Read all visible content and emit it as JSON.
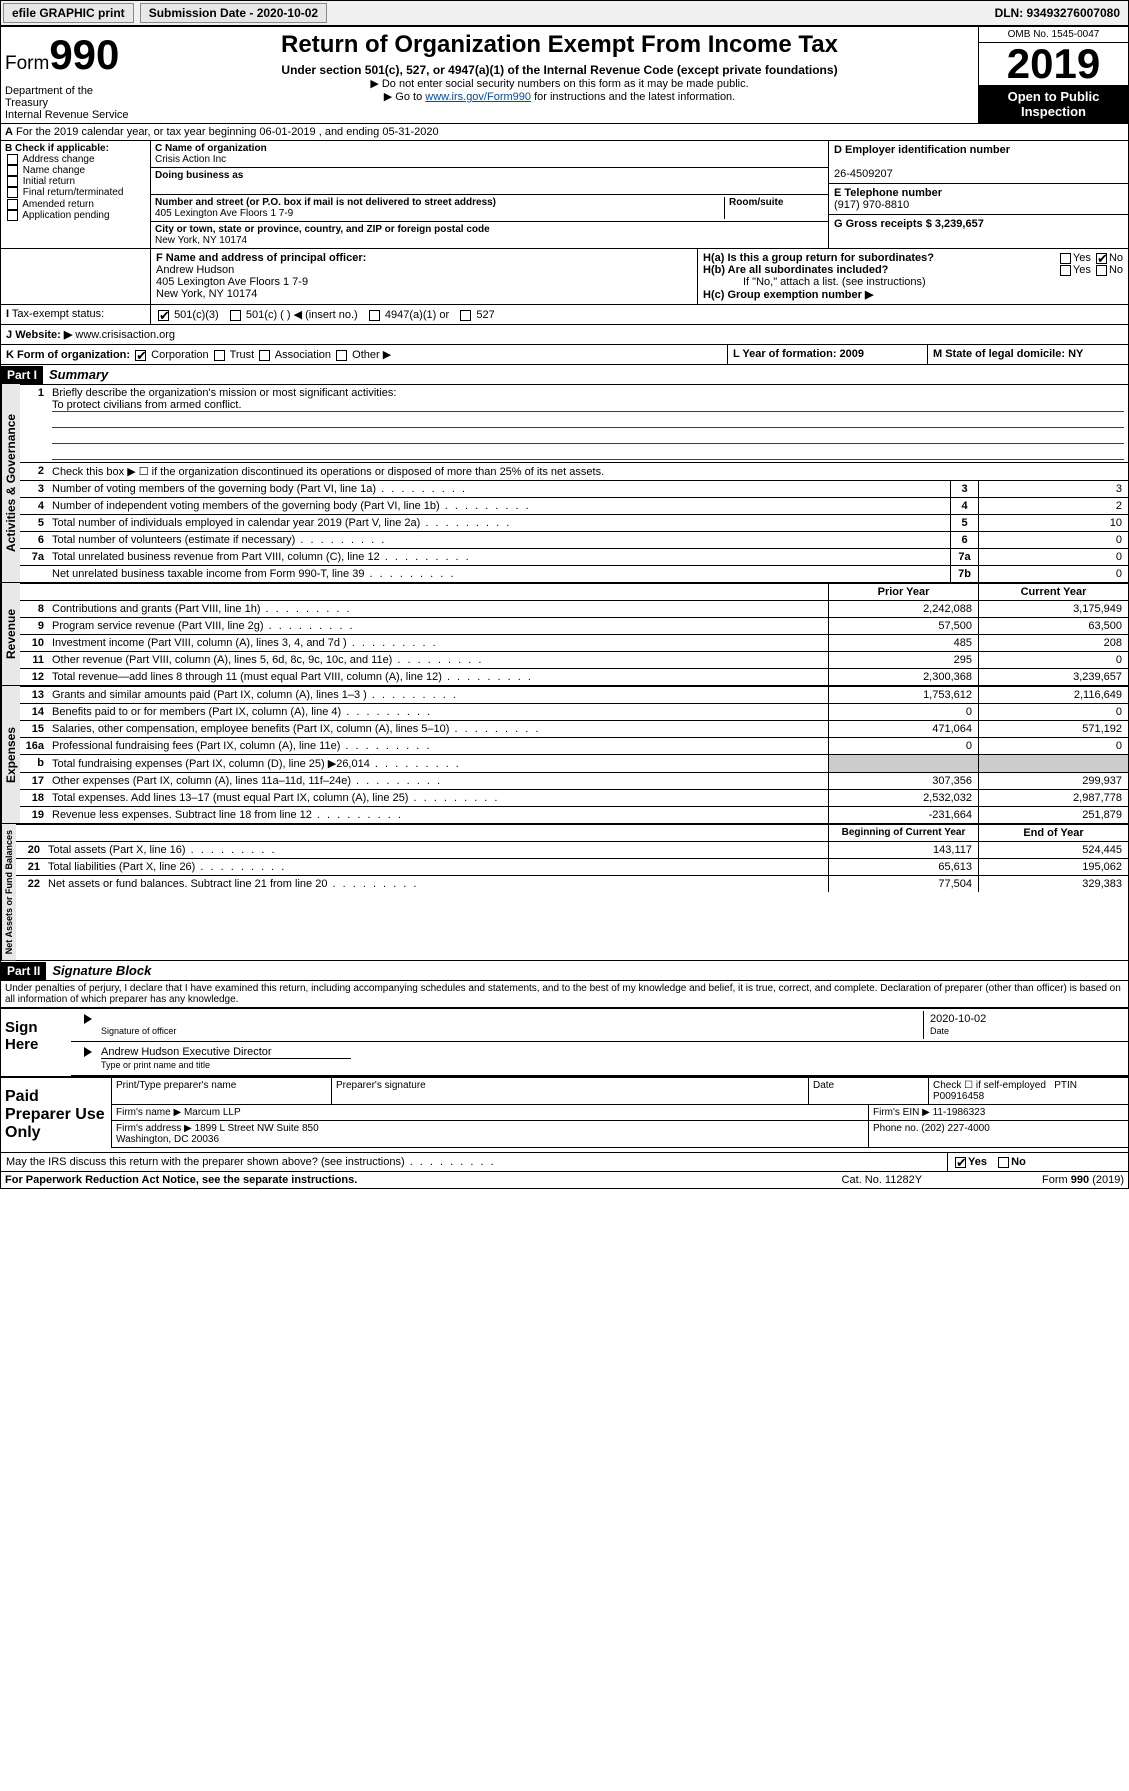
{
  "toolbar": {
    "efile": "efile GRAPHIC print",
    "submission_label": "Submission Date - 2020-10-02",
    "dln_label": "DLN: 93493276007080"
  },
  "header": {
    "form_word": "Form",
    "form_num": "990",
    "title": "Return of Organization Exempt From Income Tax",
    "subtitle": "Under section 501(c), 527, or 4947(a)(1) of the Internal Revenue Code (except private foundations)",
    "note1": "▶ Do not enter social security numbers on this form as it may be made public.",
    "note2_pre": "▶ Go to ",
    "note2_link": "www.irs.gov/Form990",
    "note2_post": " for instructions and the latest information.",
    "omb": "OMB No. 1545-0047",
    "year": "2019",
    "open": "Open to Public Inspection",
    "dept": "Department of the Treasury\nInternal Revenue Service"
  },
  "line_a": "For the 2019 calendar year, or tax year beginning 06-01-2019   , and ending 05-31-2020",
  "box_b": {
    "title": "B Check if applicable:",
    "items": [
      "Address change",
      "Name change",
      "Initial return",
      "Final return/terminated",
      "Amended return",
      "Application pending"
    ]
  },
  "box_c": {
    "name_lbl": "C Name of organization",
    "name": "Crisis Action Inc",
    "dba_lbl": "Doing business as",
    "addr_lbl": "Number and street (or P.O. box if mail is not delivered to street address)",
    "room_lbl": "Room/suite",
    "addr": "405 Lexington Ave Floors 1 7-9",
    "city_lbl": "City or town, state or province, country, and ZIP or foreign postal code",
    "city": "New York, NY  10174"
  },
  "box_d": {
    "ein_lbl": "D Employer identification number",
    "ein": "26-4509207",
    "phone_lbl": "E Telephone number",
    "phone": "(917) 970-8810",
    "gross_lbl": "G Gross receipts $ 3,239,657"
  },
  "box_f": {
    "lbl": "F Name and address of principal officer:",
    "name": "Andrew Hudson",
    "addr1": "405 Lexington Ave Floors 1 7-9",
    "addr2": "New York, NY  10174"
  },
  "box_h": {
    "a": "H(a)  Is this a group return for subordinates?",
    "b": "H(b)  Are all subordinates included?",
    "note": "If \"No,\" attach a list. (see instructions)",
    "c": "H(c)  Group exemption number ▶"
  },
  "tax_status": {
    "lbl": "Tax-exempt status:",
    "o1": "501(c)(3)",
    "o2": "501(c) (   ) ◀ (insert no.)",
    "o3": "4947(a)(1) or",
    "o4": "527"
  },
  "website": {
    "lbl": "Website: ▶",
    "val": "www.crisisaction.org"
  },
  "line_k": {
    "lbl": "K Form of organization:",
    "o1": "Corporation",
    "o2": "Trust",
    "o3": "Association",
    "o4": "Other ▶",
    "l_lbl": "L Year of formation: 2009",
    "m_lbl": "M State of legal domicile: NY"
  },
  "part1": {
    "hdr": "Part I",
    "title": "Summary",
    "q1": "Briefly describe the organization's mission or most significant activities:",
    "mission": "To protect civilians from armed conflict.",
    "q2": "Check this box ▶ ☐  if the organization discontinued its operations or disposed of more than 25% of its net assets.",
    "rows_gov": [
      {
        "n": "3",
        "t": "Number of voting members of the governing body (Part VI, line 1a)",
        "b": "3",
        "v": "3"
      },
      {
        "n": "4",
        "t": "Number of independent voting members of the governing body (Part VI, line 1b)",
        "b": "4",
        "v": "2"
      },
      {
        "n": "5",
        "t": "Total number of individuals employed in calendar year 2019 (Part V, line 2a)",
        "b": "5",
        "v": "10"
      },
      {
        "n": "6",
        "t": "Total number of volunteers (estimate if necessary)",
        "b": "6",
        "v": "0"
      },
      {
        "n": "7a",
        "t": "Total unrelated business revenue from Part VIII, column (C), line 12",
        "b": "7a",
        "v": "0"
      },
      {
        "n": "",
        "t": "Net unrelated business taxable income from Form 990-T, line 39",
        "b": "7b",
        "v": "0"
      }
    ],
    "col_hdr": {
      "prior": "Prior Year",
      "current": "Current Year"
    },
    "rows_rev": [
      {
        "n": "8",
        "t": "Contributions and grants (Part VIII, line 1h)",
        "p": "2,242,088",
        "c": "3,175,949"
      },
      {
        "n": "9",
        "t": "Program service revenue (Part VIII, line 2g)",
        "p": "57,500",
        "c": "63,500"
      },
      {
        "n": "10",
        "t": "Investment income (Part VIII, column (A), lines 3, 4, and 7d )",
        "p": "485",
        "c": "208"
      },
      {
        "n": "11",
        "t": "Other revenue (Part VIII, column (A), lines 5, 6d, 8c, 9c, 10c, and 11e)",
        "p": "295",
        "c": "0"
      },
      {
        "n": "12",
        "t": "Total revenue—add lines 8 through 11 (must equal Part VIII, column (A), line 12)",
        "p": "2,300,368",
        "c": "3,239,657"
      }
    ],
    "rows_exp": [
      {
        "n": "13",
        "t": "Grants and similar amounts paid (Part IX, column (A), lines 1–3 )",
        "p": "1,753,612",
        "c": "2,116,649"
      },
      {
        "n": "14",
        "t": "Benefits paid to or for members (Part IX, column (A), line 4)",
        "p": "0",
        "c": "0"
      },
      {
        "n": "15",
        "t": "Salaries, other compensation, employee benefits (Part IX, column (A), lines 5–10)",
        "p": "471,064",
        "c": "571,192"
      },
      {
        "n": "16a",
        "t": "Professional fundraising fees (Part IX, column (A), line 11e)",
        "p": "0",
        "c": "0"
      },
      {
        "n": "b",
        "t": "Total fundraising expenses (Part IX, column (D), line 25) ▶26,014",
        "p": "",
        "c": ""
      },
      {
        "n": "17",
        "t": "Other expenses (Part IX, column (A), lines 11a–11d, 11f–24e)",
        "p": "307,356",
        "c": "299,937"
      },
      {
        "n": "18",
        "t": "Total expenses. Add lines 13–17 (must equal Part IX, column (A), line 25)",
        "p": "2,532,032",
        "c": "2,987,778"
      },
      {
        "n": "19",
        "t": "Revenue less expenses. Subtract line 18 from line 12",
        "p": "-231,664",
        "c": "251,879"
      }
    ],
    "col_hdr2": {
      "prior": "Beginning of Current Year",
      "current": "End of Year"
    },
    "rows_net": [
      {
        "n": "20",
        "t": "Total assets (Part X, line 16)",
        "p": "143,117",
        "c": "524,445"
      },
      {
        "n": "21",
        "t": "Total liabilities (Part X, line 26)",
        "p": "65,613",
        "c": "195,062"
      },
      {
        "n": "22",
        "t": "Net assets or fund balances. Subtract line 21 from line 20",
        "p": "77,504",
        "c": "329,383"
      }
    ],
    "vtabs": {
      "gov": "Activities & Governance",
      "rev": "Revenue",
      "exp": "Expenses",
      "net": "Net Assets or Fund Balances"
    }
  },
  "part2": {
    "hdr": "Part II",
    "title": "Signature Block",
    "perjury": "Under penalties of perjury, I declare that I have examined this return, including accompanying schedules and statements, and to the best of my knowledge and belief, it is true, correct, and complete. Declaration of preparer (other than officer) is based on all information of which preparer has any knowledge.",
    "sign": "Sign Here",
    "sig_officer": "Signature of officer",
    "sig_date": "2020-10-02",
    "date_lbl": "Date",
    "officer_name": "Andrew Hudson  Executive Director",
    "type_lbl": "Type or print name and title",
    "paid": "Paid Preparer Use Only",
    "p_name_lbl": "Print/Type preparer's name",
    "p_sig_lbl": "Preparer's signature",
    "p_date_lbl": "Date",
    "p_check": "Check ☐ if self-employed",
    "ptin_lbl": "PTIN",
    "ptin": "P00916458",
    "firm_name_lbl": "Firm's name   ▶",
    "firm_name": "Marcum LLP",
    "firm_ein_lbl": "Firm's EIN ▶",
    "firm_ein": "11-1986323",
    "firm_addr_lbl": "Firm's address ▶",
    "firm_addr": "1899 L Street NW Suite 850\nWashington, DC  20036",
    "firm_phone_lbl": "Phone no.",
    "firm_phone": "(202) 227-4000",
    "discuss": "May the IRS discuss this return with the preparer shown above? (see instructions)",
    "yes": "Yes",
    "no": "No"
  },
  "footer": {
    "pra": "For Paperwork Reduction Act Notice, see the separate instructions.",
    "cat": "Cat. No. 11282Y",
    "form": "Form 990 (2019)"
  }
}
